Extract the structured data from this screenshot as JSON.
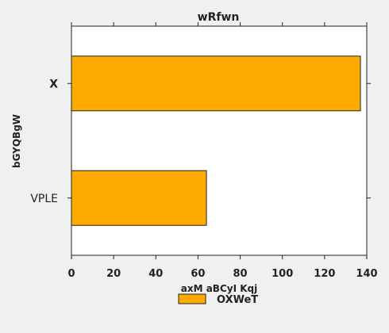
{
  "chart_data": {
    "type": "bar",
    "orientation": "horizontal",
    "title": "wRfwn",
    "xlabel": "axM aBCyI Kqj",
    "ylabel": "bGYQBgW",
    "categories": [
      "X",
      "VPLE"
    ],
    "series": [
      {
        "name": "OXWeT",
        "values": [
          137,
          64
        ],
        "color": "#ffaa00"
      }
    ],
    "xlim": [
      0,
      140
    ],
    "xticks": [
      0,
      20,
      40,
      60,
      80,
      100,
      120,
      140
    ],
    "grid": false,
    "legend_position": "bottom-center"
  }
}
